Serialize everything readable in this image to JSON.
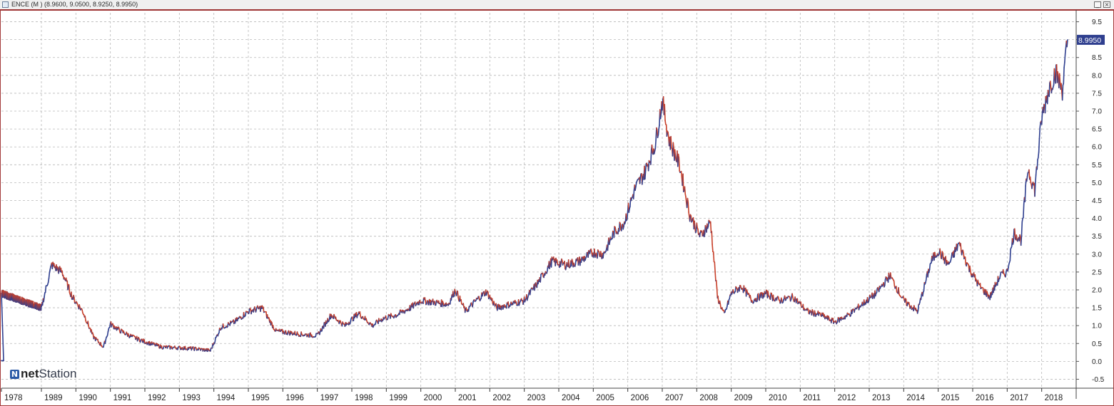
{
  "window": {
    "title": "ENCE (M ) (8.9600, 9.0500, 8.9250, 8.9950)",
    "minimize_glyph": "_",
    "maximize_glyph": "□",
    "close_glyph": "×"
  },
  "brand": {
    "logo_mark": "N",
    "logo_text_bold": "net",
    "logo_text_rest": "Station"
  },
  "colors": {
    "up": "#2f3f8f",
    "down": "#c8402a",
    "grid": "#b8b8b8",
    "last_badge_bg": "#2f3f8f"
  },
  "chart_data": {
    "type": "line",
    "style": "ohlc-bars",
    "title": "ENCE (M )",
    "last_value": "8.9950",
    "ylim": [
      -0.75,
      9.75
    ],
    "y_ticks": [
      "9.5",
      "9.0",
      "8.5",
      "8.0",
      "7.5",
      "7.0",
      "6.5",
      "6.0",
      "5.5",
      "5.0",
      "4.5",
      "4.0",
      "3.5",
      "3.0",
      "2.5",
      "2.0",
      "1.5",
      "1.0",
      "0.5",
      "0.0",
      "-0.5"
    ],
    "x_ticks": [
      "1978",
      "1989",
      "1990",
      "1991",
      "1992",
      "1993",
      "1994",
      "1995",
      "1996",
      "1997",
      "1998",
      "1999",
      "2000",
      "2001",
      "2002",
      "2003",
      "2004",
      "2005",
      "2006",
      "2007",
      "2008",
      "2009",
      "2010",
      "2011",
      "2012",
      "2013",
      "2014",
      "2015",
      "2016",
      "2017",
      "2018"
    ],
    "grid": true,
    "series": [
      {
        "x": [
          1978.0,
          1989.0,
          1989.3,
          1989.6,
          1989.9,
          1990.2,
          1990.5,
          1990.8,
          1991.0,
          1991.3,
          1991.6,
          1992.0,
          1992.5,
          1993.0,
          1993.5,
          1993.9,
          1994.2,
          1994.6,
          1995.0,
          1995.4,
          1995.8,
          1996.2,
          1996.6,
          1997.0,
          1997.4,
          1997.8,
          1998.2,
          1998.6,
          1998.9,
          1999.3,
          1999.7,
          2000.0,
          2000.4,
          2000.8,
          2001.0,
          2001.3,
          2001.6,
          2001.9,
          2002.2,
          2002.6,
          2003.0,
          2003.4,
          2003.8,
          2004.2,
          2004.6,
          2005.0,
          2005.3,
          2005.6,
          2005.9,
          2006.2,
          2006.5,
          2006.8,
          2007.0,
          2007.2,
          2007.5,
          2007.8,
          2008.1,
          2008.4,
          2008.6,
          2008.8,
          2009.0,
          2009.3,
          2009.6,
          2010.0,
          2010.4,
          2010.8,
          2011.2,
          2011.6,
          2012.0,
          2012.4,
          2012.8,
          2013.2,
          2013.6,
          2014.0,
          2014.4,
          2014.8,
          2015.0,
          2015.3,
          2015.6,
          2015.9,
          2016.2,
          2016.5,
          2016.8,
          2017.0,
          2017.2,
          2017.4,
          2017.6,
          2017.8,
          2018.0,
          2018.2,
          2018.4,
          2018.6,
          2018.75
        ],
        "y": [
          1.9,
          1.5,
          2.7,
          2.5,
          1.8,
          1.4,
          0.7,
          0.4,
          1.05,
          0.85,
          0.7,
          0.55,
          0.4,
          0.38,
          0.35,
          0.3,
          0.95,
          1.1,
          1.4,
          1.5,
          0.85,
          0.8,
          0.75,
          0.72,
          1.3,
          1.0,
          1.35,
          1.0,
          1.2,
          1.3,
          1.5,
          1.7,
          1.65,
          1.6,
          2.0,
          1.4,
          1.7,
          1.95,
          1.5,
          1.6,
          1.7,
          2.2,
          2.8,
          2.7,
          2.8,
          3.05,
          3.0,
          3.6,
          3.9,
          4.8,
          5.3,
          6.1,
          7.3,
          6.2,
          5.5,
          4.1,
          3.5,
          3.9,
          1.8,
          1.3,
          1.9,
          2.1,
          1.7,
          1.9,
          1.7,
          1.8,
          1.4,
          1.3,
          1.1,
          1.3,
          1.6,
          1.9,
          2.4,
          1.7,
          1.4,
          2.8,
          3.1,
          2.7,
          3.3,
          2.6,
          2.1,
          1.8,
          2.4,
          2.5,
          3.6,
          3.4,
          5.4,
          4.8,
          6.8,
          7.6,
          8.1,
          7.6,
          8.995
        ]
      }
    ]
  }
}
